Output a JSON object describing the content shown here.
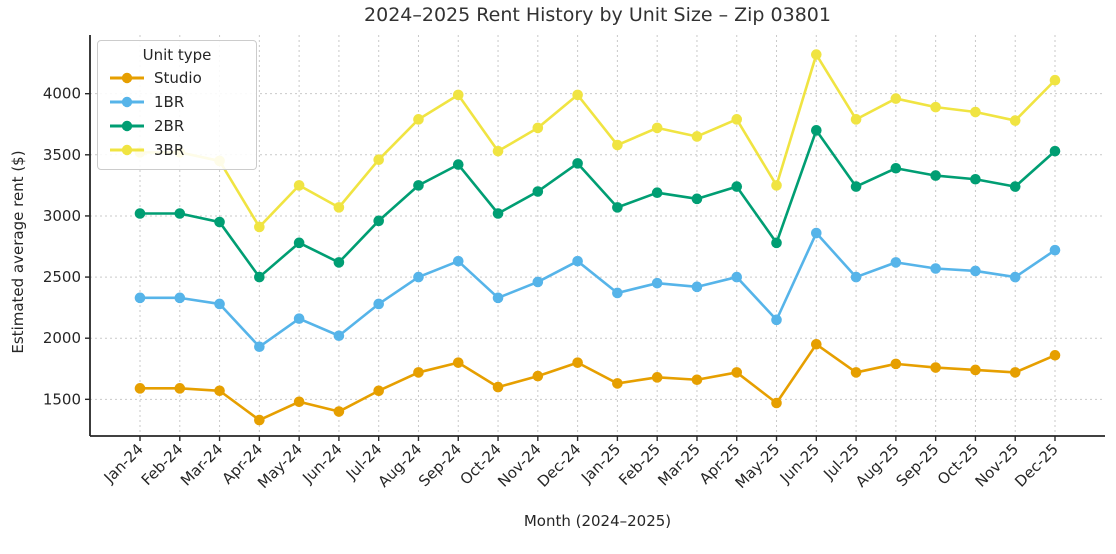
{
  "chart_data": {
    "type": "line",
    "title": "2024–2025 Rent History by Unit Size – Zip 03801",
    "xlabel": "Month (2024–2025)",
    "ylabel": "Estimated average rent ($)",
    "legend_title": "Unit type",
    "legend_position": "upper left",
    "grid": true,
    "marker": "circle",
    "x_categories": [
      "Jan-24",
      "Feb-24",
      "Mar-24",
      "Apr-24",
      "May-24",
      "Jun-24",
      "Jul-24",
      "Aug-24",
      "Sep-24",
      "Oct-24",
      "Nov-24",
      "Dec-24",
      "Jan-25",
      "Feb-25",
      "Mar-25",
      "Apr-25",
      "May-25",
      "Jun-25",
      "Jul-25",
      "Aug-25",
      "Sep-25",
      "Oct-25",
      "Nov-25",
      "Dec-25"
    ],
    "yticks": [
      1500,
      2000,
      2500,
      3000,
      3500,
      4000
    ],
    "ylim": [
      1200,
      4480
    ],
    "series": [
      {
        "name": "Studio",
        "color": "#E69F00",
        "values": [
          1590,
          1590,
          1570,
          1330,
          1480,
          1400,
          1570,
          1720,
          1800,
          1600,
          1690,
          1800,
          1630,
          1680,
          1660,
          1720,
          1470,
          1950,
          1720,
          1790,
          1760,
          1740,
          1720,
          1860
        ]
      },
      {
        "name": "1BR",
        "color": "#56B4E9",
        "values": [
          2330,
          2330,
          2280,
          1930,
          2160,
          2020,
          2280,
          2500,
          2630,
          2330,
          2460,
          2630,
          2370,
          2450,
          2420,
          2500,
          2150,
          2860,
          2500,
          2620,
          2570,
          2550,
          2500,
          2720
        ]
      },
      {
        "name": "2BR",
        "color": "#009E73",
        "values": [
          3020,
          3020,
          2950,
          2500,
          2780,
          2620,
          2960,
          3250,
          3420,
          3020,
          3200,
          3430,
          3070,
          3190,
          3140,
          3240,
          2780,
          3700,
          3240,
          3390,
          3330,
          3300,
          3240,
          3530
        ]
      },
      {
        "name": "3BR",
        "color": "#F0E442",
        "values": [
          3520,
          3520,
          3450,
          2910,
          3250,
          3070,
          3460,
          3790,
          3990,
          3530,
          3720,
          3990,
          3580,
          3720,
          3650,
          3790,
          3250,
          4320,
          3790,
          3960,
          3890,
          3850,
          3780,
          4110
        ]
      }
    ]
  },
  "colors": {
    "background": "#ffffff",
    "axis": "#262626",
    "grid": "#c9c9c9",
    "title_text": "#323232",
    "legend_border": "#cccccc"
  }
}
